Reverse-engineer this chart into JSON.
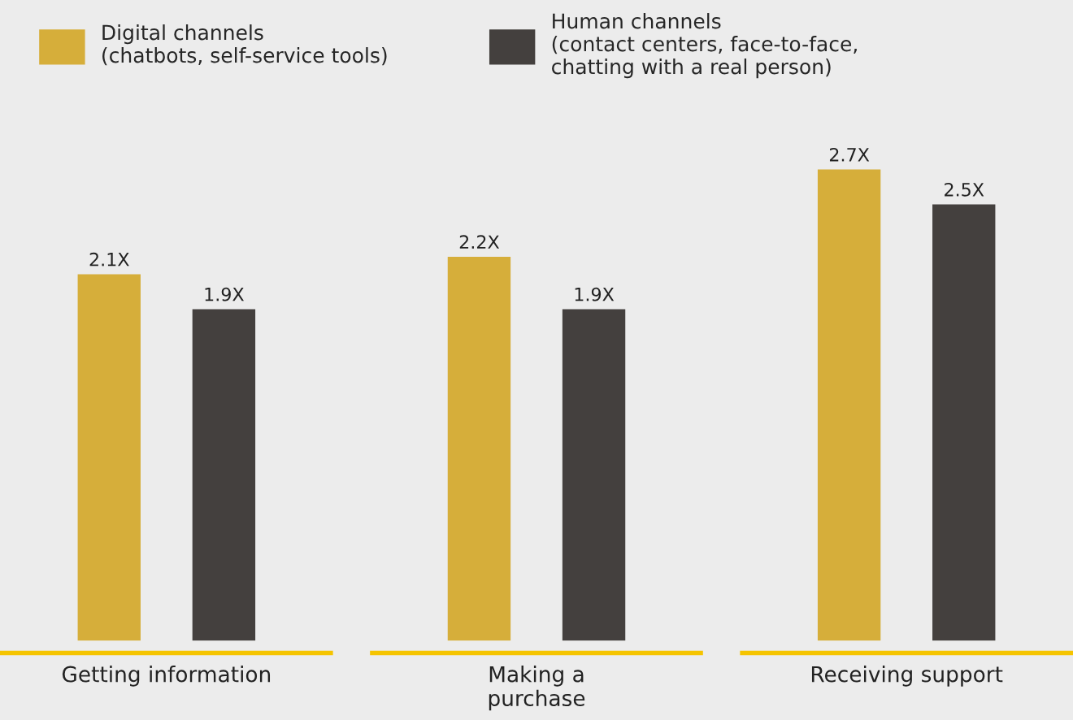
{
  "chart_data": {
    "type": "bar",
    "categories": [
      "Getting information",
      "Making a\npurchase",
      "Receiving support"
    ],
    "series": [
      {
        "name": "Digital channels\n(chatbots, self-service tools)",
        "color": "#d6ae3a",
        "values": [
          2.1,
          2.2,
          2.7
        ],
        "value_labels": [
          "2.1X",
          "2.2X",
          "2.7X"
        ]
      },
      {
        "name": "Human channels\n(contact centers, face-to-face,\nchatting with a real person)",
        "color": "#44403e",
        "values": [
          1.9,
          1.9,
          2.5
        ],
        "value_labels": [
          "1.9X",
          "1.9X",
          "2.5X"
        ]
      }
    ],
    "legend": "top",
    "grid": false
  }
}
